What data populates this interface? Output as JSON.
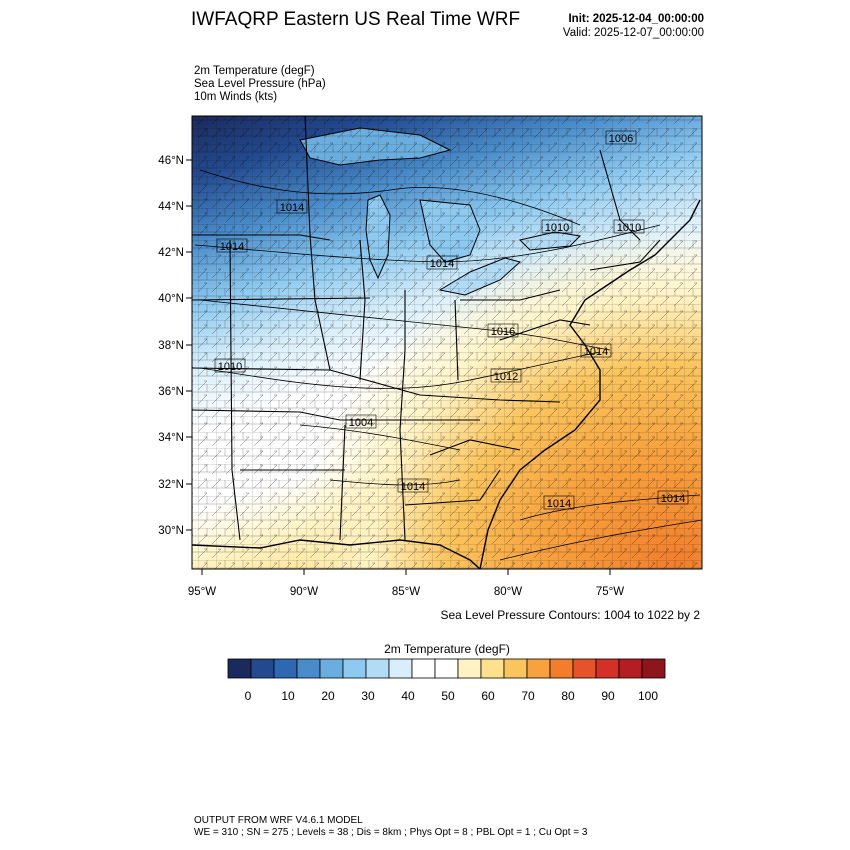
{
  "header": {
    "title": "IWFAQRP Eastern US Real Time WRF",
    "init": "Init: 2025-12-04_00:00:00",
    "valid": "Valid: 2025-12-07_00:00:00"
  },
  "fields": [
    "2m Temperature   (degF)",
    "Sea Level Pressure   (hPa)",
    "10m Winds   (kts)"
  ],
  "map": {
    "lat_labels": [
      "46°N",
      "44°N",
      "42°N",
      "40°N",
      "38°N",
      "36°N",
      "34°N",
      "32°N",
      "30°N"
    ],
    "lon_labels": [
      "95°W",
      "90°W",
      "85°W",
      "80°W",
      "75°W"
    ],
    "pressure_labels": [
      {
        "text": "1006"
      },
      {
        "text": "1014"
      },
      {
        "text": "1014"
      },
      {
        "text": "1010"
      },
      {
        "text": "1010"
      },
      {
        "text": "1014"
      },
      {
        "text": "1016"
      },
      {
        "text": "1014"
      },
      {
        "text": "1010"
      },
      {
        "text": "1012"
      },
      {
        "text": "1004"
      },
      {
        "text": "1014"
      },
      {
        "text": "1014"
      },
      {
        "text": "1014"
      }
    ],
    "contour_note": "Sea Level Pressure Contours: 1004 to 1022 by 2"
  },
  "colorbar": {
    "title": "2m Temperature  (degF)",
    "colors": [
      "#1b2a5c",
      "#234a8f",
      "#2e68b3",
      "#4a8cc9",
      "#6aaedf",
      "#8ecaf0",
      "#b2dcf5",
      "#d8eefa",
      "#ffffff",
      "#ffffff",
      "#fff3c4",
      "#ffe08c",
      "#fbc55e",
      "#f7a23e",
      "#f27d2c",
      "#e6522a",
      "#d43026",
      "#b41d22",
      "#8e151b"
    ],
    "tick_labels": [
      "0",
      "10",
      "20",
      "30",
      "40",
      "50",
      "60",
      "70",
      "80",
      "90",
      "100"
    ]
  },
  "footer": {
    "model": "OUTPUT FROM WRF V4.6.1 MODEL",
    "params": "WE = 310 ; SN = 275 ; Levels = 38 ; Dis = 8km ; Phys Opt = 8 ; PBL Opt = 1 ; Cu Opt = 3"
  }
}
